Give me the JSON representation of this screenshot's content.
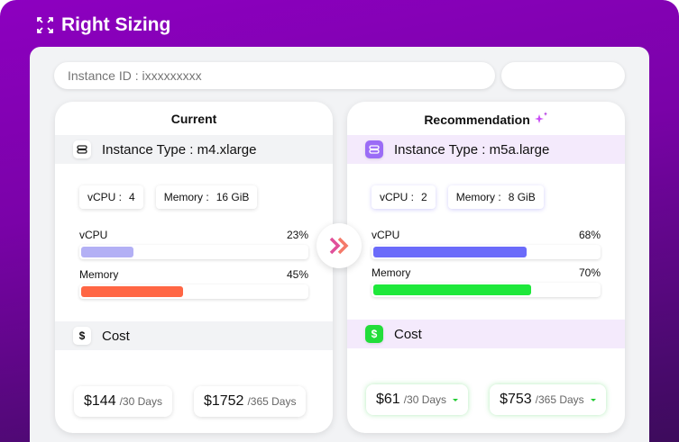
{
  "header": {
    "title": "Right Sizing",
    "icon": "expand-icon"
  },
  "search": {
    "placeholder": "Instance ID : ixxxxxxxxx"
  },
  "current": {
    "title": "Current",
    "instance_type": "Instance Type : m4.xlarge",
    "vcpu_label": "vCPU :",
    "vcpu_value": "4",
    "memory_label": "Memory :",
    "memory_value": "16 GiB",
    "metrics": [
      {
        "label": "vCPU",
        "percent_text": "23%",
        "percent": 23,
        "color": "#b3b0f5"
      },
      {
        "label": "Memory",
        "percent_text": "45%",
        "percent": 45,
        "color": "#ff6644"
      }
    ],
    "cost_label": "Cost",
    "costs": [
      {
        "amount": "$144",
        "period": "/30 Days"
      },
      {
        "amount": "$1752",
        "period": "/365 Days"
      }
    ]
  },
  "recommendation": {
    "title": "Recommendation",
    "instance_type": "Instance Type : m5a.large",
    "vcpu_label": "vCPU :",
    "vcpu_value": "2",
    "memory_label": "Memory :",
    "memory_value": "8 GiB",
    "metrics": [
      {
        "label": "vCPU",
        "percent_text": "68%",
        "percent": 68,
        "color": "#6b6bfa"
      },
      {
        "label": "Memory",
        "percent_text": "70%",
        "percent": 70,
        "color": "#1ee83a"
      }
    ],
    "cost_label": "Cost",
    "costs": [
      {
        "amount": "$61",
        "period": "/30 Days",
        "trend": "down"
      },
      {
        "amount": "$753",
        "period": "/365 Days",
        "trend": "down"
      }
    ]
  },
  "colors": {
    "accent": "#8d00c0",
    "sparkle": "#c94cf5",
    "arrow": "#f06a8a"
  }
}
